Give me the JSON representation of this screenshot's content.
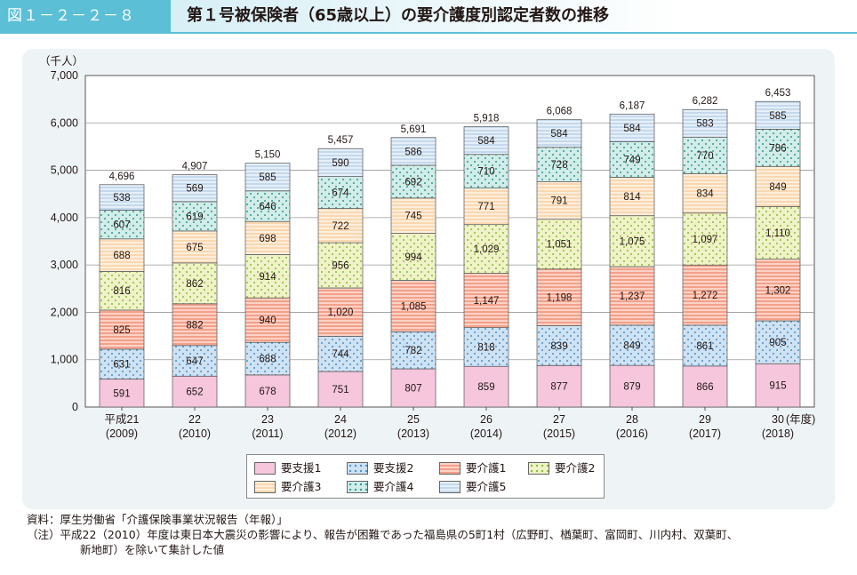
{
  "header": {
    "figure_label": "図１－２－２－８",
    "title": "第１号被保険者（65歳以上）の要介護度別認定者数の推移"
  },
  "chart_data": {
    "type": "bar",
    "stacked": true,
    "title": "第１号被保険者（65歳以上）の要介護度別認定者数の推移",
    "ylabel": "（千人）",
    "xlabel_suffix": "(年度)",
    "ylim": [
      0,
      7000
    ],
    "yticks": [
      0,
      1000,
      2000,
      3000,
      4000,
      5000,
      6000,
      7000
    ],
    "ytick_labels": [
      "0",
      "1,000",
      "2,000",
      "3,000",
      "4,000",
      "5,000",
      "6,000",
      "7,000"
    ],
    "categories": [
      {
        "label": "平成21",
        "sub": "(2009)"
      },
      {
        "label": "22",
        "sub": "(2010)"
      },
      {
        "label": "23",
        "sub": "(2011)"
      },
      {
        "label": "24",
        "sub": "(2012)"
      },
      {
        "label": "25",
        "sub": "(2013)"
      },
      {
        "label": "26",
        "sub": "(2014)"
      },
      {
        "label": "27",
        "sub": "(2015)"
      },
      {
        "label": "28",
        "sub": "(2016)"
      },
      {
        "label": "29",
        "sub": "(2017)"
      },
      {
        "label": "30",
        "sub": "(2018)"
      }
    ],
    "series": [
      {
        "name": "要支援1",
        "color": "#f5c6dc",
        "pattern": "solid",
        "values": [
          591,
          652,
          678,
          751,
          807,
          859,
          877,
          879,
          866,
          915
        ]
      },
      {
        "name": "要支援2",
        "color": "#cfe2f3",
        "pattern": "dots",
        "dot_color": "#4a90c8",
        "values": [
          631,
          647,
          688,
          744,
          782,
          818,
          839,
          849,
          861,
          905
        ]
      },
      {
        "name": "要介護1",
        "color": "#f4a08a",
        "pattern": "hstripe",
        "stripe_color": "#fbd2c6",
        "values": [
          825,
          882,
          940,
          1020,
          1085,
          1147,
          1198,
          1237,
          1272,
          1302
        ]
      },
      {
        "name": "要介護2",
        "color": "#f0f2c8",
        "pattern": "dots",
        "dot_color": "#8dbb3a",
        "values": [
          816,
          862,
          914,
          956,
          994,
          1029,
          1051,
          1075,
          1097,
          1110
        ]
      },
      {
        "name": "要介護3",
        "color": "#fbd8b0",
        "pattern": "hstripe",
        "stripe_color": "#fdeedd",
        "values": [
          688,
          675,
          698,
          722,
          745,
          771,
          791,
          814,
          834,
          849
        ]
      },
      {
        "name": "要介護4",
        "color": "#d2ede9",
        "pattern": "dots",
        "dot_color": "#2f9a8e",
        "values": [
          607,
          619,
          646,
          674,
          692,
          710,
          728,
          749,
          770,
          786
        ]
      },
      {
        "name": "要介護5",
        "color": "#c4d9ee",
        "pattern": "hstripe",
        "stripe_color": "#e6eff8",
        "values": [
          538,
          569,
          585,
          590,
          586,
          584,
          584,
          584,
          583,
          585
        ]
      }
    ],
    "totals": [
      4696,
      4907,
      5150,
      5457,
      5691,
      5918,
      6068,
      6187,
      6282,
      6453
    ]
  },
  "notes": {
    "source": "資料：厚生労働省「介護保険事業状況報告（年報）」",
    "note_line1": "（注）平成22（2010）年度は東日本大震災の影響により、報告が困難であった福島県の5町1村（広野町、楢葉町、富岡町、川内村、双葉町、",
    "note_line2": "新地町）を除いて集計した値"
  }
}
